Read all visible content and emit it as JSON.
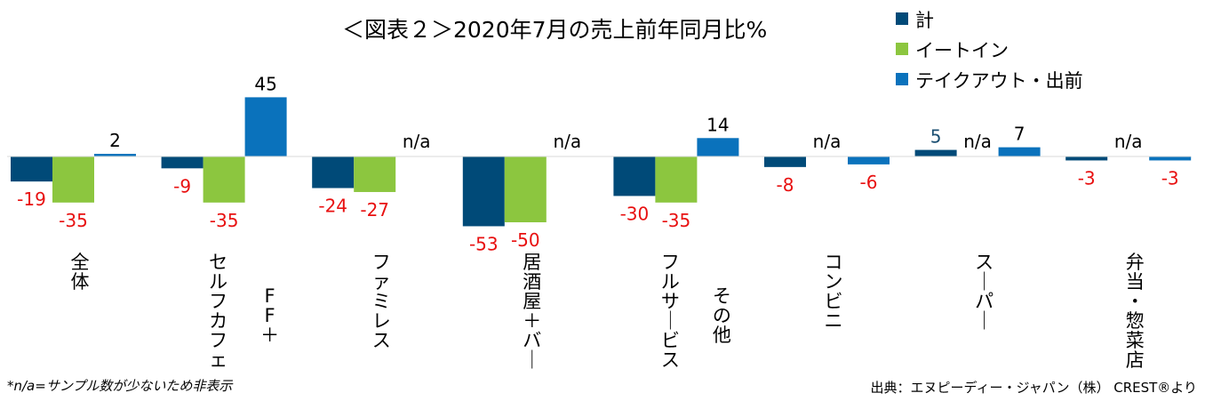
{
  "chart_data": {
    "type": "bar",
    "title": "＜図表２＞2020年7月の売上前年同月比%",
    "categories": [
      "全体",
      "セルフカフェ",
      "FF+",
      "ファミレス",
      "居酒屋+バー",
      "フルサービス",
      "その他",
      "コンビニ",
      "スーパー",
      "弁当・惣菜店"
    ],
    "groups": [
      {
        "label": "全体",
        "values": [
          -19,
          -35,
          2
        ],
        "labels": [
          "-19",
          "-35",
          "2"
        ]
      },
      {
        "label": "セルフカフェ",
        "sublabel": "FF+",
        "values": [
          -9,
          -35,
          45
        ],
        "labels": [
          "-9",
          "-35",
          "45"
        ]
      },
      {
        "label": "ファミレス",
        "values": [
          -24,
          -27,
          null
        ],
        "labels": [
          "-24",
          "-27",
          "n/a"
        ]
      },
      {
        "label": "居酒屋+バー",
        "values": [
          -53,
          -50,
          null
        ],
        "labels": [
          "-53",
          "-50",
          "n/a"
        ]
      },
      {
        "label": "フルサービス",
        "sublabel": "その他",
        "values": [
          -30,
          -35,
          14
        ],
        "labels": [
          "-30",
          "-35",
          "14"
        ]
      },
      {
        "label": "コンビニ",
        "values": [
          -8,
          null,
          -6
        ],
        "labels": [
          "-8",
          "n/a",
          "-6"
        ]
      },
      {
        "label": "スーパー",
        "values": [
          5,
          null,
          7
        ],
        "labels": [
          "5",
          "n/a",
          "7"
        ]
      },
      {
        "label": "弁当・惣菜店",
        "values": [
          -3,
          null,
          -3
        ],
        "labels": [
          "-3",
          "n/a",
          "-3"
        ]
      }
    ],
    "series": [
      {
        "name": "計",
        "color": "#004a78"
      },
      {
        "name": "イートイン",
        "color": "#8cc63f"
      },
      {
        "name": "テイクアウト・出前",
        "color": "#0a72bc"
      }
    ],
    "ylim": [
      -60,
      50
    ],
    "legend_position": "top-right",
    "grid": false
  },
  "colors": {
    "negative_label": "#e81010",
    "positive_label": "#000000",
    "series1_positive_label": "#1b4f72"
  },
  "footnote": "*n/a=サンプル数が少ないため非表示",
  "source": "出典：エヌピーディー・ジャパン（株） CREST®より"
}
